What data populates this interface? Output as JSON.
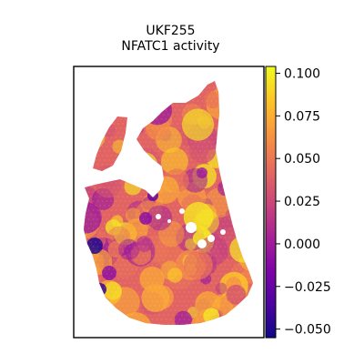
{
  "chart_data": {
    "type": "heatmap",
    "title_lines": [
      "UKF255",
      "NFATC1 activity"
    ],
    "colorbar": {
      "colormap": "plasma",
      "range": [
        -0.055,
        0.104
      ],
      "ticks": [
        {
          "value": 0.1,
          "label": "0.100"
        },
        {
          "value": 0.075,
          "label": "0.075"
        },
        {
          "value": 0.05,
          "label": "0.050"
        },
        {
          "value": 0.025,
          "label": "0.025"
        },
        {
          "value": 0.0,
          "label": "0.000"
        },
        {
          "value": -0.025,
          "label": "−0.025"
        },
        {
          "value": -0.05,
          "label": "−0.050"
        }
      ]
    },
    "x_ticks": [],
    "y_ticks": [],
    "grid": false
  }
}
